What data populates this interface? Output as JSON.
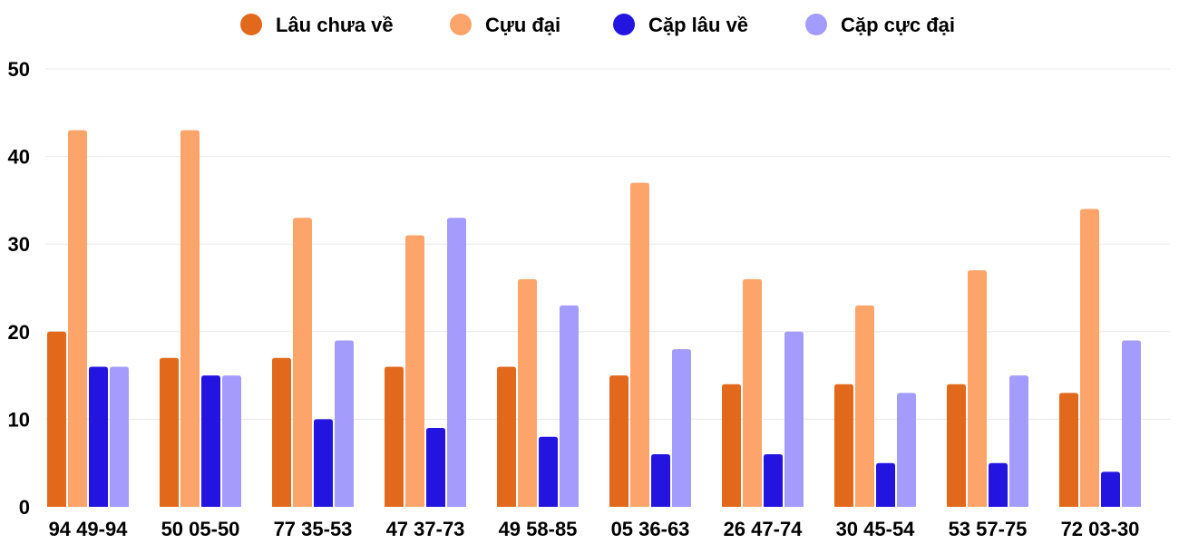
{
  "chart_data": {
    "type": "bar",
    "title": "",
    "xlabel": "",
    "ylabel": "",
    "ylim": [
      0,
      50
    ],
    "yticks": [
      0,
      10,
      20,
      30,
      40,
      50
    ],
    "grid": true,
    "legend_position": "top-center",
    "categories": [
      "94 49-94",
      "50 05-50",
      "77 35-53",
      "47 37-73",
      "49 58-85",
      "05 36-63",
      "26 47-74",
      "30 45-54",
      "53 57-75",
      "72 03-30"
    ],
    "series": [
      {
        "name": "Lâu chưa về",
        "color": "#e2681c",
        "values": [
          20,
          17,
          17,
          16,
          16,
          15,
          14,
          14,
          14,
          13
        ]
      },
      {
        "name": "Cựu đại",
        "color": "#fda46b",
        "values": [
          43,
          43,
          33,
          31,
          26,
          37,
          26,
          23,
          27,
          34
        ]
      },
      {
        "name": "Cặp lâu về",
        "color": "#2414e0",
        "values": [
          16,
          15,
          10,
          9,
          8,
          6,
          6,
          5,
          5,
          4
        ]
      },
      {
        "name": "Cặp cực đại",
        "color": "#a49cfc",
        "values": [
          16,
          15,
          19,
          33,
          23,
          18,
          20,
          13,
          15,
          19
        ]
      }
    ]
  }
}
